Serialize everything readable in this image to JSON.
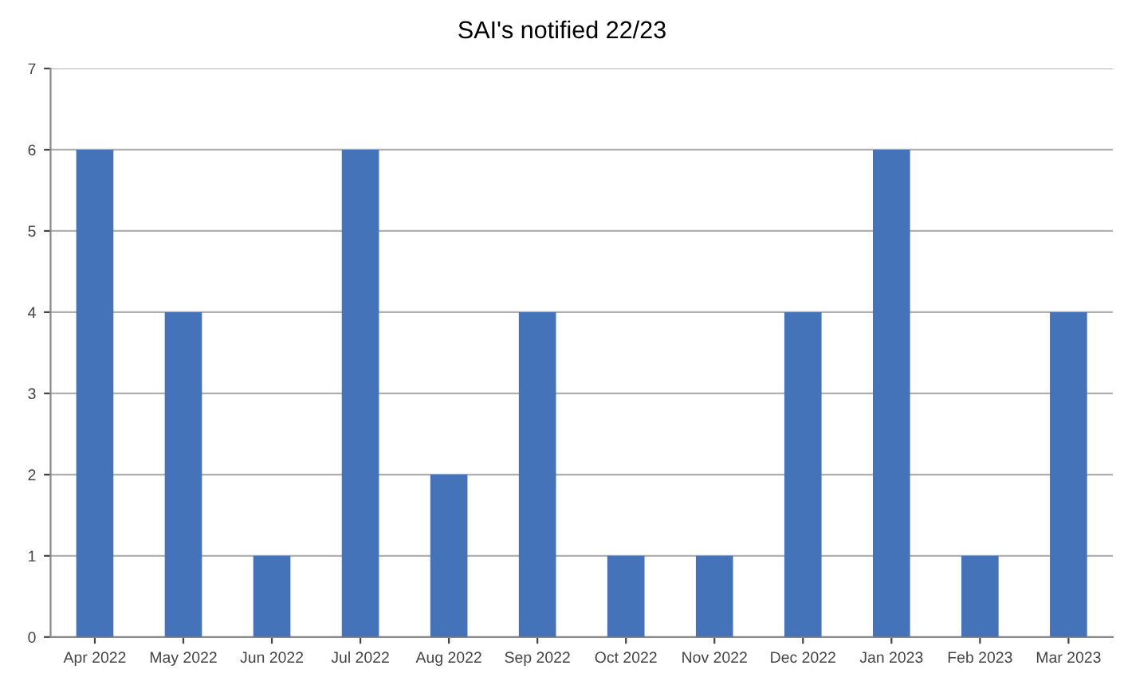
{
  "chart_data": {
    "type": "bar",
    "title": "SAI's notified 22/23",
    "categories": [
      "Apr 2022",
      "May 2022",
      "Jun 2022",
      "Jul 2022",
      "Aug 2022",
      "Sep 2022",
      "Oct 2022",
      "Nov 2022",
      "Dec 2022",
      "Jan 2023",
      "Feb 2023",
      "Mar 2023"
    ],
    "values": [
      6,
      4,
      1,
      6,
      2,
      4,
      1,
      1,
      4,
      6,
      1,
      4
    ],
    "color": "#4473b9",
    "ylim": [
      0,
      7
    ],
    "yticks": [
      0,
      1,
      2,
      3,
      4,
      5,
      6,
      7
    ],
    "grid": "y"
  }
}
